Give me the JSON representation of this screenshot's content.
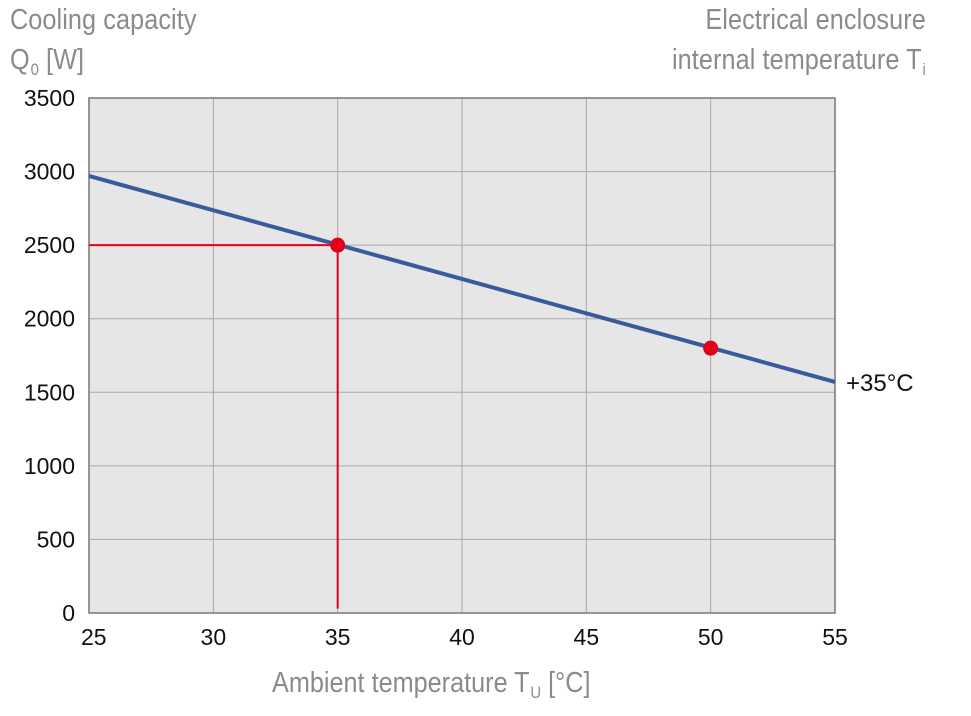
{
  "y_title": {
    "line1": "Cooling capacity",
    "symbol": "Q",
    "subscript": "0",
    "unit": "[W]"
  },
  "enclosure_title": {
    "line1": "Electrical enclosure",
    "line2": "internal temperature T",
    "subscript": "i"
  },
  "x_title": {
    "text": "Ambient temperature T",
    "subscript": "U",
    "unit": "[°C]"
  },
  "chart_data": {
    "type": "line",
    "x": [
      25,
      55
    ],
    "series": [
      {
        "name": "+35°C",
        "values": [
          2970,
          1570
        ],
        "color": "#3a5a9c"
      }
    ],
    "xlim": [
      25,
      55
    ],
    "ylim": [
      0,
      3500
    ],
    "xticks": [
      25,
      30,
      35,
      40,
      45,
      50,
      55
    ],
    "yticks": [
      0,
      500,
      1000,
      1500,
      2000,
      2500,
      3000,
      3500
    ],
    "grid": true,
    "plot_background": "#e6e6e6",
    "grid_color": "#a8a8a8",
    "highlight_points": [
      {
        "x": 35,
        "y": 2500,
        "color": "#e2001a"
      },
      {
        "x": 50,
        "y": 1800,
        "color": "#e2001a"
      }
    ],
    "reference_lines": [
      {
        "from": [
          25,
          2500
        ],
        "to": [
          35,
          2500
        ],
        "color": "#e2001a"
      },
      {
        "from": [
          35,
          2500
        ],
        "to": [
          35,
          30
        ],
        "color": "#e2001a"
      }
    ]
  }
}
